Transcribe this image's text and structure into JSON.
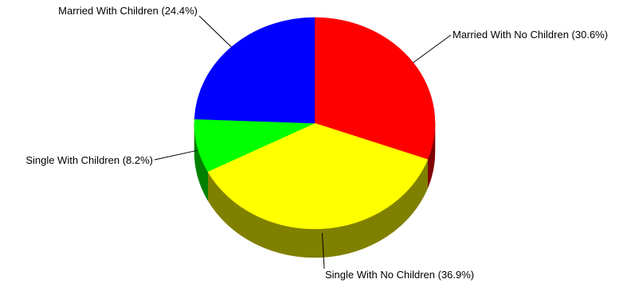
{
  "chart_data": {
    "type": "pie",
    "style": "3d",
    "title": "",
    "slices": [
      {
        "label": "Married With No Children (30.6%)",
        "value": 30.6,
        "color": "#ff0000",
        "side_color": "#800000"
      },
      {
        "label": "Single With No Children (36.9%)",
        "value": 36.9,
        "color": "#ffff00",
        "side_color": "#808000"
      },
      {
        "label": "Single With Children (8.2%)",
        "value": 8.2,
        "color": "#00ff00",
        "side_color": "#008000"
      },
      {
        "label": "Married With Children (24.4%)",
        "value": 24.4,
        "color": "#0000ff",
        "side_color": "#000080"
      }
    ],
    "start_angle": "12 o'clock",
    "direction": "clockwise",
    "legend": "none",
    "labels": "outside with leader lines"
  }
}
